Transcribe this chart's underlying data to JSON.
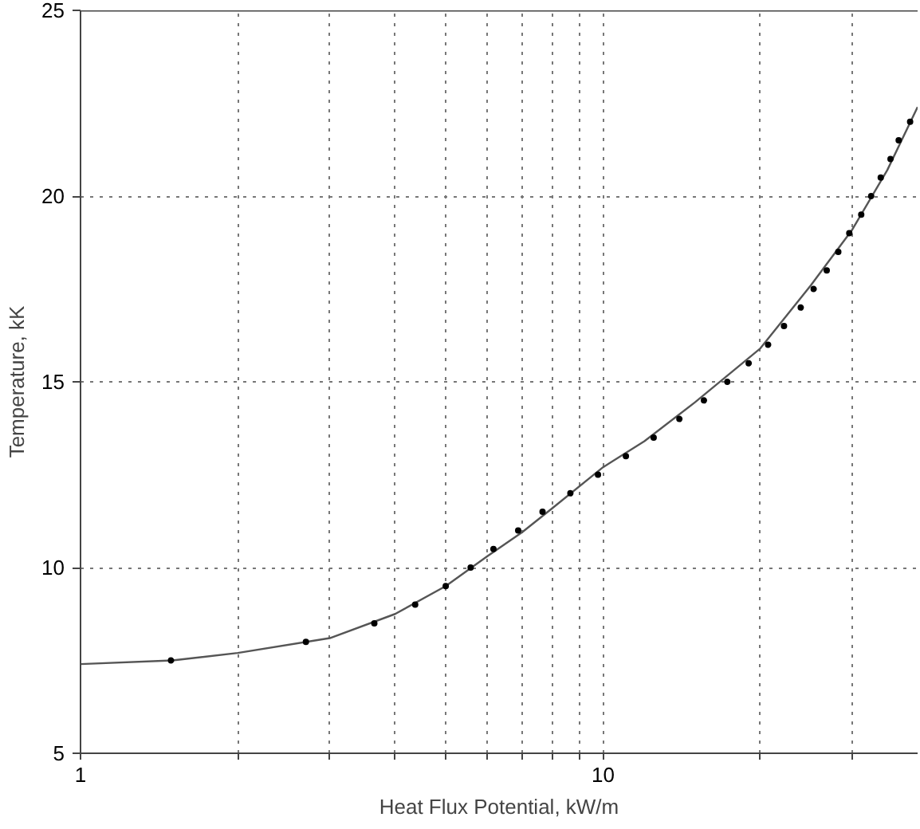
{
  "chart_data": {
    "type": "scatter",
    "xlabel": "Heat Flux Potential, kW/m",
    "ylabel": "Temperature, kK",
    "log": "x",
    "grid": true,
    "marker": "circle",
    "xlim": [
      1,
      40
    ],
    "ylim": [
      5,
      25
    ],
    "xticks": [
      1,
      {
        "value": 2,
        "label": null
      },
      {
        "value": 3,
        "label": null
      },
      {
        "value": 4,
        "label": null
      },
      {
        "value": 5,
        "label": null
      },
      {
        "value": 6,
        "label": null
      },
      {
        "value": 7,
        "label": null
      },
      {
        "value": 8,
        "label": null
      },
      {
        "value": 9,
        "label": null
      },
      10,
      {
        "value": 20,
        "label": null
      },
      {
        "value": 30,
        "label": null
      }
    ],
    "yticks": [
      5,
      10,
      15,
      20,
      25
    ],
    "series": [
      {
        "type": "line",
        "marker": "none",
        "color": "#555555",
        "x": [
          1,
          1.5,
          2,
          3,
          4,
          5,
          6,
          7,
          8,
          10,
          12,
          15,
          20,
          25,
          30,
          35,
          40
        ],
        "values": [
          7.4,
          7.5,
          7.7,
          8.1,
          8.75,
          9.5,
          10.3,
          10.95,
          11.6,
          12.7,
          13.4,
          14.45,
          15.9,
          17.6,
          19.1,
          20.7,
          22.4
        ]
      },
      {
        "color": "#000000",
        "x": [
          1.49,
          2.7,
          3.65,
          4.37,
          5.0,
          5.58,
          6.17,
          6.88,
          7.66,
          8.66,
          9.78,
          11.06,
          12.5,
          14.0,
          15.6,
          17.3,
          19.0,
          20.7,
          22.2,
          23.9,
          25.3,
          26.8,
          28.2,
          29.6,
          31.2,
          32.6,
          34.0,
          35.5,
          36.8,
          38.7
        ],
        "values": [
          7.5,
          8.0,
          8.5,
          9.0,
          9.5,
          10.0,
          10.5,
          11.0,
          11.5,
          12.0,
          12.5,
          13.0,
          13.5,
          14.0,
          14.5,
          15.0,
          15.5,
          16.0,
          16.5,
          17.0,
          17.5,
          18.0,
          18.5,
          19.0,
          19.5,
          20.0,
          20.5,
          21.0,
          21.5,
          22.0
        ]
      }
    ]
  }
}
